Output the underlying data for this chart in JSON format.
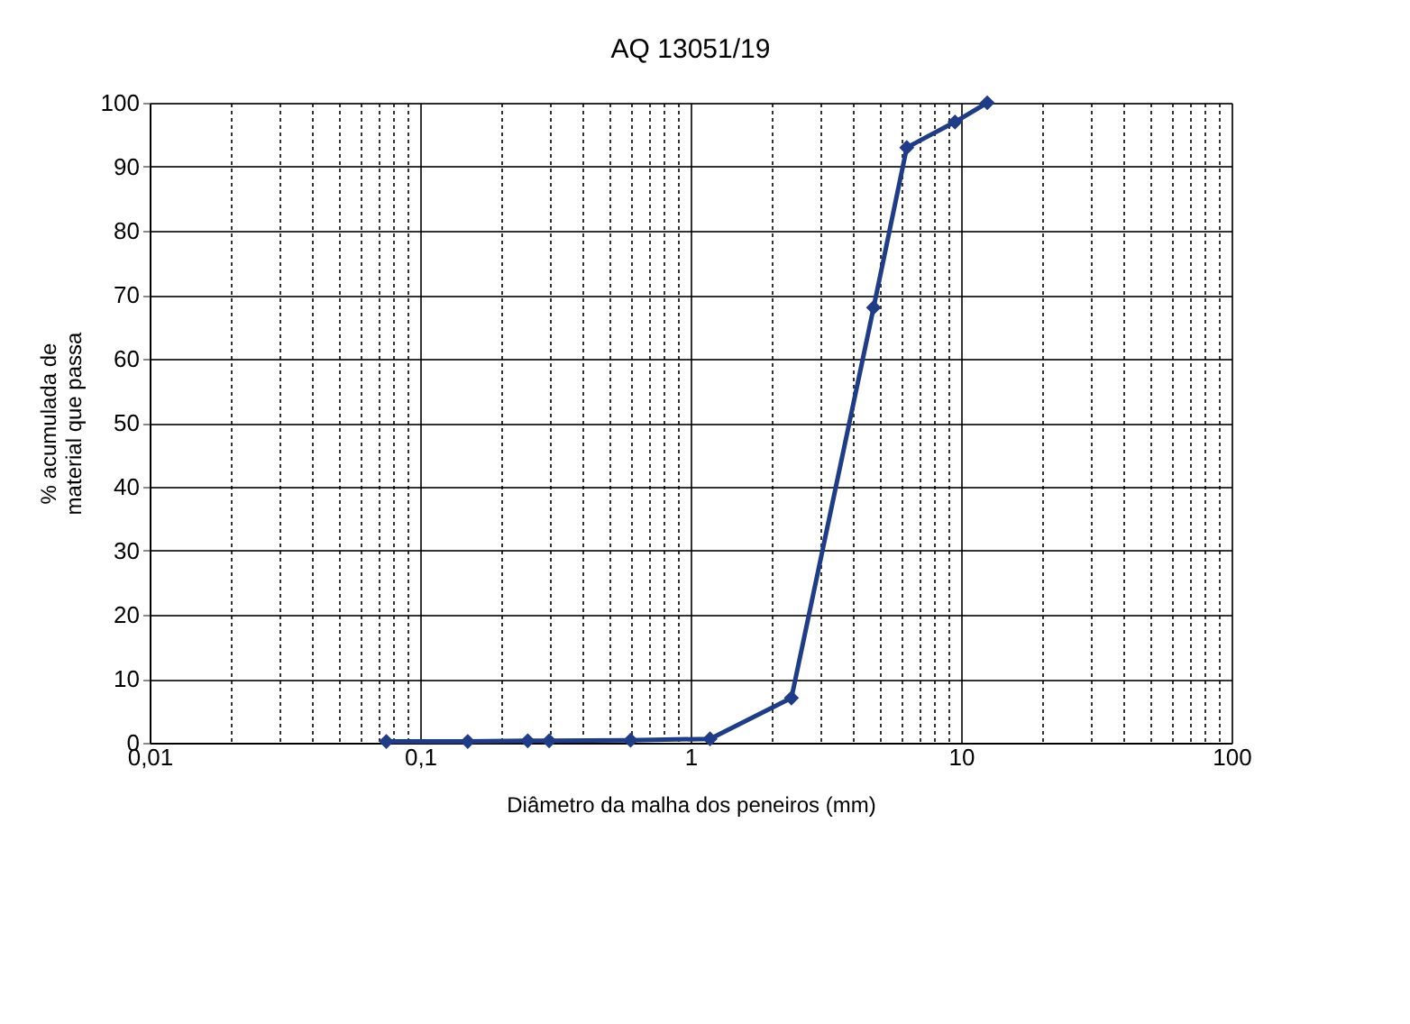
{
  "chart_data": {
    "type": "line",
    "title": "AQ 13051/19",
    "xlabel": "Diâmetro da malha dos peneiros (mm)",
    "ylabel": "% acumulada de material que passa",
    "x": [
      0.075,
      0.15,
      0.25,
      0.3,
      0.6,
      1.18,
      2.36,
      4.75,
      6.3,
      9.5,
      12.5
    ],
    "series": [
      {
        "color": "#1f3c88",
        "values": [
          0.2,
          0.2,
          0.3,
          0.3,
          0.4,
          0.6,
          7,
          68,
          93,
          97,
          100
        ]
      }
    ],
    "log": "x",
    "xlim": [
      0.01,
      100
    ],
    "ylim": [
      0,
      100
    ],
    "xticks": [
      {
        "value": 0.01,
        "label": "0,01"
      },
      {
        "value": 0.02,
        "label": null
      },
      {
        "value": 0.03,
        "label": null
      },
      {
        "value": 0.04,
        "label": null
      },
      {
        "value": 0.05,
        "label": null
      },
      {
        "value": 0.06,
        "label": null
      },
      {
        "value": 0.07,
        "label": null
      },
      {
        "value": 0.08,
        "label": null
      },
      {
        "value": 0.09,
        "label": null
      },
      {
        "value": 0.1,
        "label": "0,1"
      },
      {
        "value": 0.2,
        "label": null
      },
      {
        "value": 0.3,
        "label": null
      },
      {
        "value": 0.4,
        "label": null
      },
      {
        "value": 0.5,
        "label": null
      },
      {
        "value": 0.6,
        "label": null
      },
      {
        "value": 0.7,
        "label": null
      },
      {
        "value": 0.8,
        "label": null
      },
      {
        "value": 0.9,
        "label": null
      },
      1,
      {
        "value": 2,
        "label": null
      },
      {
        "value": 3,
        "label": null
      },
      {
        "value": 4,
        "label": null
      },
      {
        "value": 5,
        "label": null
      },
      {
        "value": 6,
        "label": null
      },
      {
        "value": 7,
        "label": null
      },
      {
        "value": 8,
        "label": null
      },
      {
        "value": 9,
        "label": null
      },
      10,
      {
        "value": 20,
        "label": null
      },
      {
        "value": 30,
        "label": null
      },
      {
        "value": 40,
        "label": null
      },
      {
        "value": 50,
        "label": null
      },
      {
        "value": 60,
        "label": null
      },
      {
        "value": 70,
        "label": null
      },
      {
        "value": 80,
        "label": null
      },
      {
        "value": 90,
        "label": null
      },
      100
    ],
    "yticks": [
      0,
      10,
      20,
      30,
      40,
      50,
      60,
      70,
      80,
      90,
      100
    ],
    "grid": true,
    "marker": "diamond",
    "line_style": "solid"
  }
}
